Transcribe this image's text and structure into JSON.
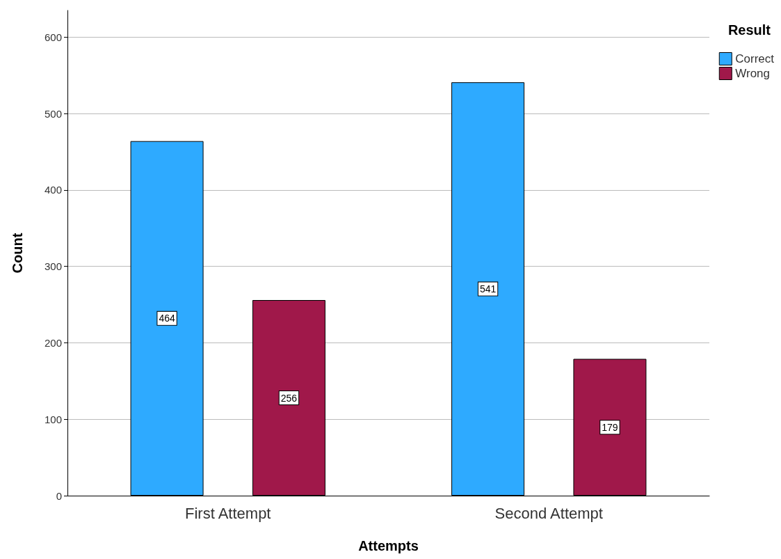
{
  "chart_data": {
    "type": "bar",
    "xlabel": "Attempts",
    "ylabel": "Count",
    "legend_title": "Result",
    "categories": [
      "First Attempt",
      "Second Attempt"
    ],
    "series": [
      {
        "name": "Correct",
        "color": "#2eaaff",
        "values": [
          464,
          541
        ]
      },
      {
        "name": "Wrong",
        "color": "#a0184a",
        "values": [
          256,
          179
        ]
      }
    ],
    "ylim": [
      0,
      635
    ],
    "yticks": [
      0,
      100,
      200,
      300,
      400,
      500,
      600
    ],
    "grid": "y",
    "legend": "top right",
    "data_labels": true
  }
}
